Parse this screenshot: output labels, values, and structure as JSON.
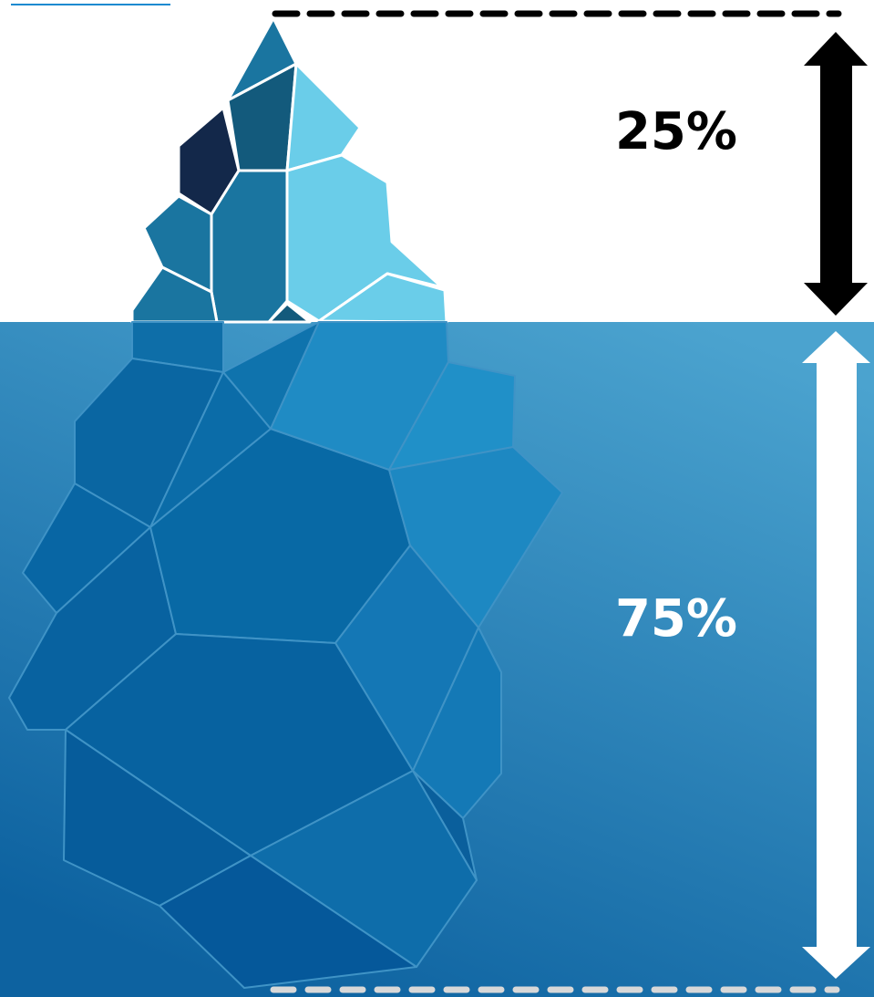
{
  "labels": {
    "above": "25%",
    "below": "75%"
  }
}
